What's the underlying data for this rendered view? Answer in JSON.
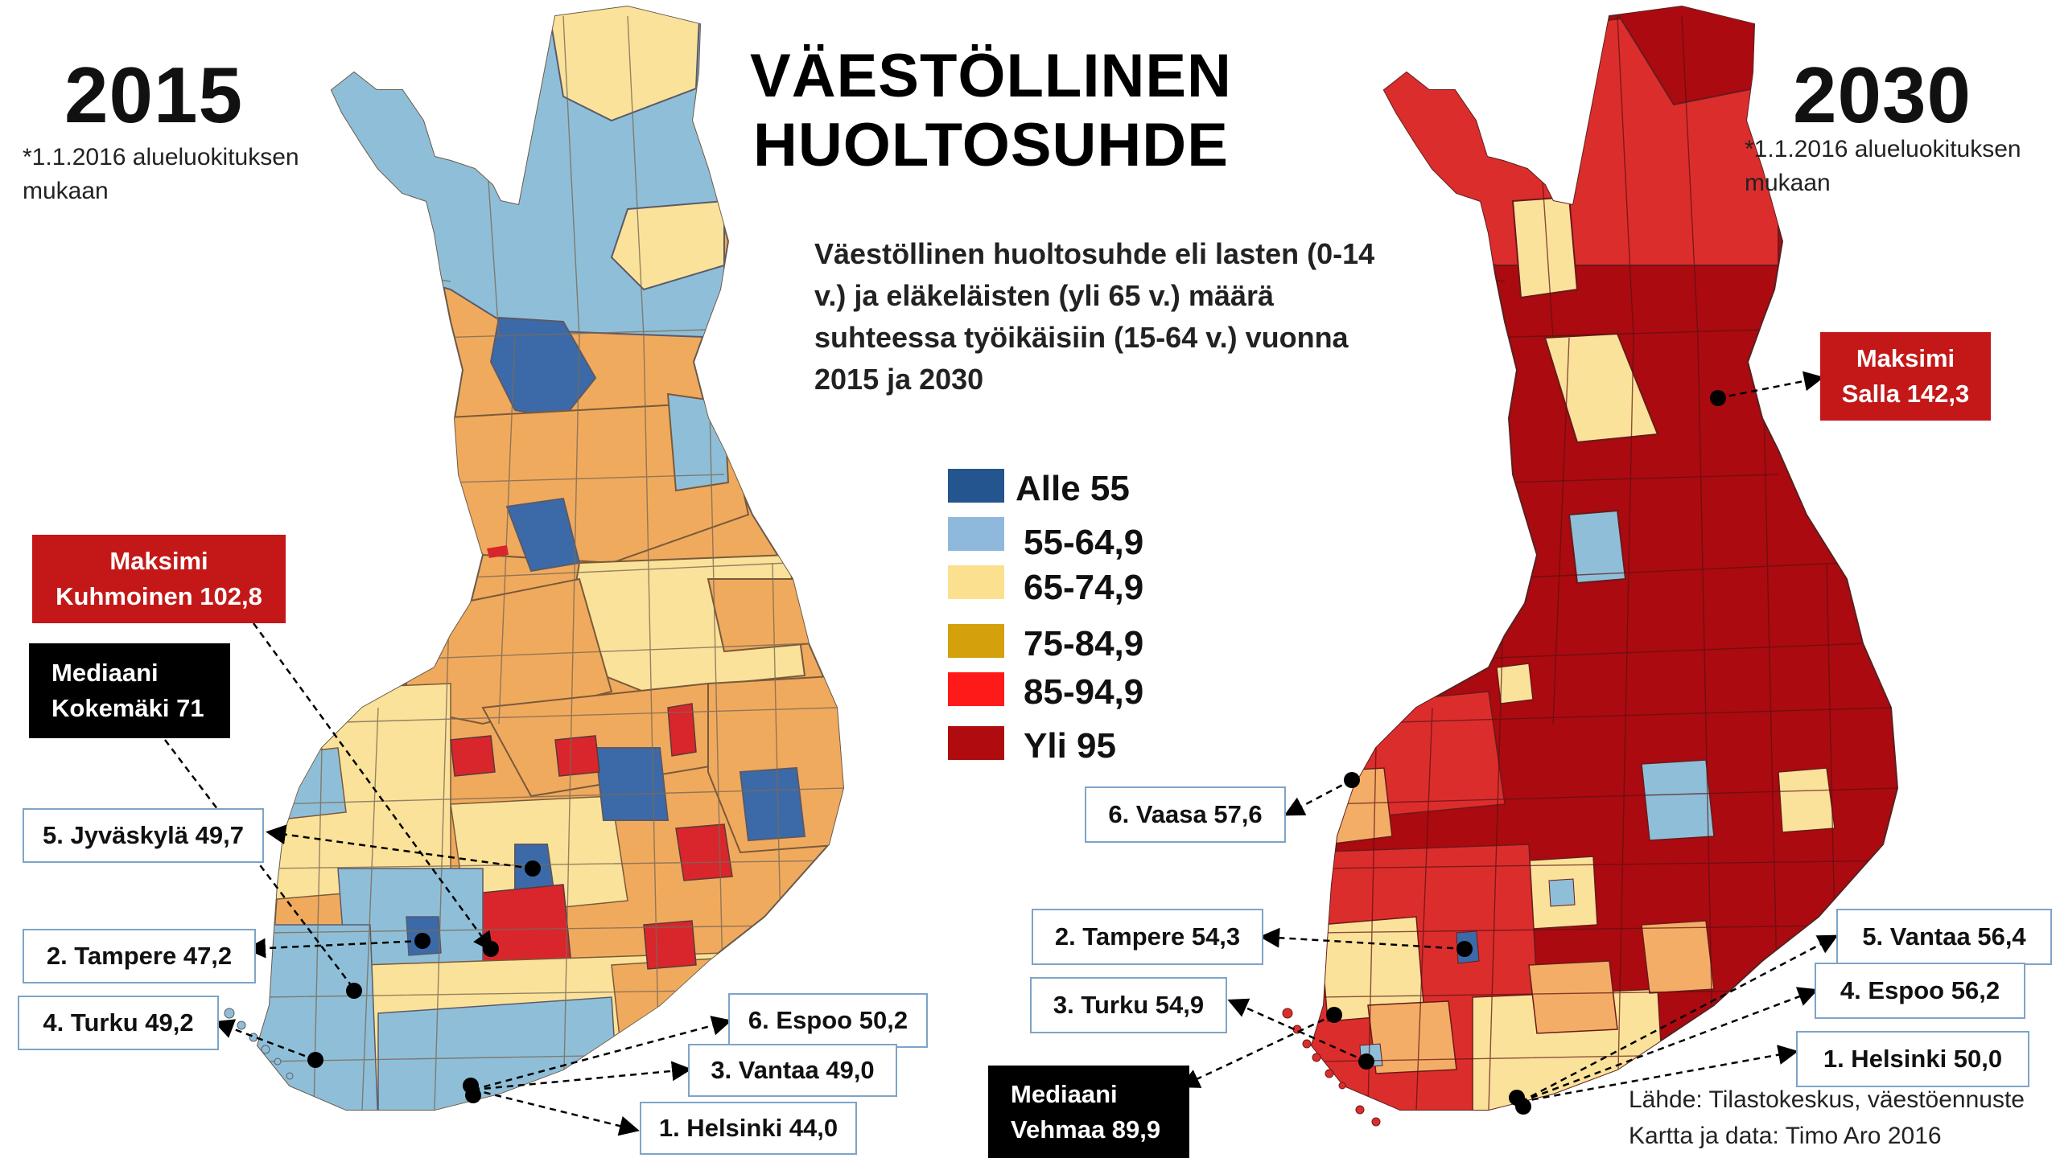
{
  "title_line1": "VÄESTÖLLINEN",
  "title_line2": "HUOLTOSUHDE",
  "description": "Väestöllinen huoltosuhde eli lasten (0-14 v.) ja eläkeläisten (yli 65 v.) määrä suhteessa työikäisiin (15-64 v.) vuonna 2015 ja 2030",
  "maps": [
    {
      "year": "2015",
      "note": "*1.1.2016 alueluokituksen mukaan",
      "max": {
        "line1": "Maksimi",
        "line2": "Kuhmoinen 102,8"
      },
      "median": {
        "line1": "Mediaani",
        "line2": "Kokemäki 71"
      },
      "ranks": [
        {
          "label": "5. Jyväskylä 49,7"
        },
        {
          "label": "2. Tampere 47,2"
        },
        {
          "label": "4. Turku 49,2"
        },
        {
          "label": "6. Espoo 50,2"
        },
        {
          "label": "3. Vantaa 49,0"
        },
        {
          "label": "1. Helsinki 44,0"
        }
      ]
    },
    {
      "year": "2030",
      "note": "*1.1.2016 alueluokituksen mukaan",
      "max": {
        "line1": "Maksimi",
        "line2": "Salla 142,3"
      },
      "median": {
        "line1": "Mediaani",
        "line2": "Vehmaa 89,9"
      },
      "ranks": [
        {
          "label": "6. Vaasa 57,6"
        },
        {
          "label": "2. Tampere 54,3"
        },
        {
          "label": "3. Turku 54,9"
        },
        {
          "label": "5. Vantaa 56,4"
        },
        {
          "label": "4. Espoo 56,2"
        },
        {
          "label": "1. Helsinki 50,0"
        }
      ]
    }
  ],
  "legend": [
    {
      "label": "Alle 55",
      "color": "#24558f"
    },
    {
      "label": "55-64,9",
      "color": "#8fb9dc"
    },
    {
      "label": "65-74,9",
      "color": "#fbe08f"
    },
    {
      "label": "75-84,9",
      "color": "#d4a10c"
    },
    {
      "label": "85-94,9",
      "color": "#ff1a1a"
    },
    {
      "label": "Yli 95",
      "color": "#b00c10"
    }
  ],
  "map_colors": {
    "c2015_orange": "#f0aa5e",
    "c2015_lightblue": "#8fbfd8",
    "c2015_yellow": "#fbe29a",
    "c2015_blue": "#3c6aa8",
    "c2015_red": "#d8262c",
    "c2030_darkred": "#ab0a10",
    "c2030_red": "#dc2d2d",
    "c2030_yellow": "#fbe29a",
    "c2030_orange": "#f4ad66",
    "c2030_lightblue": "#8fbfd8",
    "border": "#6a5a4a"
  },
  "source_line1": "Lähde: Tilastokeskus, väestöennuste",
  "source_line2": "Kartta ja data: Timo Aro 2016"
}
